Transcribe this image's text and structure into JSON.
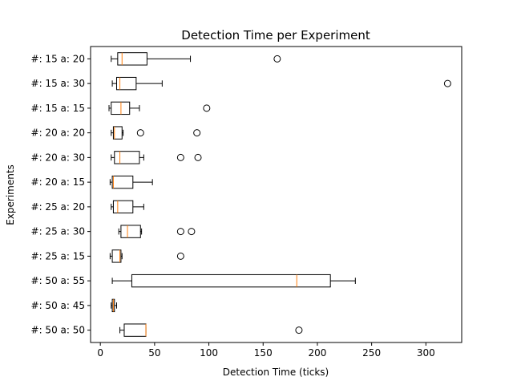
{
  "chart_data": {
    "type": "boxplot",
    "orientation": "horizontal",
    "title": "Detection Time per Experiment",
    "xlabel": "Detection Time (ticks)",
    "ylabel": "Experiments",
    "xlim": [
      -9,
      333
    ],
    "xticks": [
      0,
      50,
      100,
      150,
      200,
      250,
      300
    ],
    "grid": false,
    "colors": {
      "box": "#000000",
      "median": "#ff7f0e",
      "background": "#ffffff"
    },
    "series": [
      {
        "label": "#: 15 a: 20",
        "whisker_low": 10,
        "q1": 16,
        "median": 20,
        "q3": 43,
        "whisker_high": 83,
        "outliers": [
          163
        ]
      },
      {
        "label": "#: 15 a: 30",
        "whisker_low": 11,
        "q1": 15,
        "median": 18,
        "q3": 33,
        "whisker_high": 57,
        "outliers": [
          320
        ]
      },
      {
        "label": "#: 15 a: 15",
        "whisker_low": 8,
        "q1": 10,
        "median": 19,
        "q3": 27,
        "whisker_high": 36,
        "outliers": [
          98
        ]
      },
      {
        "label": "#: 20 a: 20",
        "whisker_low": 10,
        "q1": 12,
        "median": 13,
        "q3": 20,
        "whisker_high": 21,
        "outliers": [
          37,
          89
        ]
      },
      {
        "label": "#: 20 a: 30",
        "whisker_low": 10,
        "q1": 13,
        "median": 18,
        "q3": 36,
        "whisker_high": 40,
        "outliers": [
          74,
          90
        ]
      },
      {
        "label": "#: 20 a: 15",
        "whisker_low": 9,
        "q1": 11,
        "median": 12,
        "q3": 30,
        "whisker_high": 48,
        "outliers": []
      },
      {
        "label": "#: 25 a: 20",
        "whisker_low": 10,
        "q1": 12,
        "median": 16,
        "q3": 30,
        "whisker_high": 40,
        "outliers": []
      },
      {
        "label": "#: 25 a: 30",
        "whisker_low": 17,
        "q1": 19,
        "median": 25,
        "q3": 37,
        "whisker_high": 38,
        "outliers": [
          74,
          84
        ]
      },
      {
        "label": "#: 25 a: 15",
        "whisker_low": 9,
        "q1": 11,
        "median": 18,
        "q3": 19,
        "whisker_high": 20,
        "outliers": [
          74
        ]
      },
      {
        "label": "#: 50 a: 55",
        "whisker_low": 11,
        "q1": 29,
        "median": 181,
        "q3": 212,
        "whisker_high": 235,
        "outliers": []
      },
      {
        "label": "#: 50 a: 45",
        "whisker_low": 10,
        "q1": 11,
        "median": 12,
        "q3": 13,
        "whisker_high": 15,
        "outliers": []
      },
      {
        "label": "#: 50 a: 50",
        "whisker_low": 18,
        "q1": 22,
        "median": 42,
        "q3": 42,
        "whisker_high": 42,
        "outliers": [
          183
        ]
      }
    ]
  }
}
